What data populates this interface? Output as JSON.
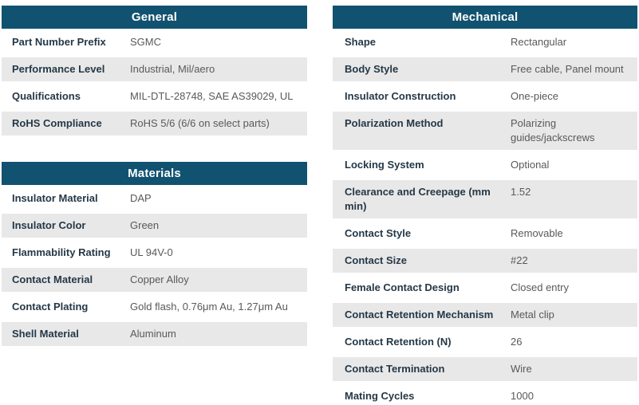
{
  "colors": {
    "header_bg": "#115270",
    "row_stripe": "#E8E8E8",
    "label_text": "#253847",
    "value_text": "#58595B"
  },
  "tables": [
    {
      "id": "general",
      "title": "General",
      "rows": [
        {
          "label": "Part Number Prefix",
          "value": "SGMC"
        },
        {
          "label": "Performance Level",
          "value": "Industrial, Mil/aero"
        },
        {
          "label": "Qualifications",
          "value": "MIL-DTL-28748, SAE AS39029, UL"
        },
        {
          "label": "RoHS Compliance",
          "value": "RoHS 5/6 (6/6 on select parts)"
        }
      ]
    },
    {
      "id": "materials",
      "title": "Materials",
      "rows": [
        {
          "label": "Insulator Material",
          "value": "DAP"
        },
        {
          "label": "Insulator Color",
          "value": "Green"
        },
        {
          "label": "Flammability Rating",
          "value": "UL 94V-0"
        },
        {
          "label": "Contact Material",
          "value": "Copper Alloy"
        },
        {
          "label": "Contact Plating",
          "value": "Gold flash, 0.76μm Au, 1.27μm Au"
        },
        {
          "label": "Shell Material",
          "value": "Aluminum"
        }
      ]
    },
    {
      "id": "mechanical",
      "title": "Mechanical",
      "rows": [
        {
          "label": "Shape",
          "value": "Rectangular"
        },
        {
          "label": "Body Style",
          "value": "Free cable, Panel mount"
        },
        {
          "label": "Insulator Construction",
          "value": "One-piece"
        },
        {
          "label": "Polarization Method",
          "value": "Polarizing guides/jackscrews"
        },
        {
          "label": "Locking System",
          "value": "Optional"
        },
        {
          "label": "Clearance and Creepage (mm min)",
          "value": "1.52"
        },
        {
          "label": "Contact Style",
          "value": "Removable"
        },
        {
          "label": "Contact Size",
          "value": "#22"
        },
        {
          "label": "Female Contact Design",
          "value": "Closed entry"
        },
        {
          "label": "Contact Retention Mechanism",
          "value": "Metal clip"
        },
        {
          "label": "Contact Retention (N)",
          "value": "26"
        },
        {
          "label": "Contact Termination",
          "value": "Wire"
        },
        {
          "label": "Mating Cycles",
          "value": "1000"
        }
      ]
    }
  ]
}
